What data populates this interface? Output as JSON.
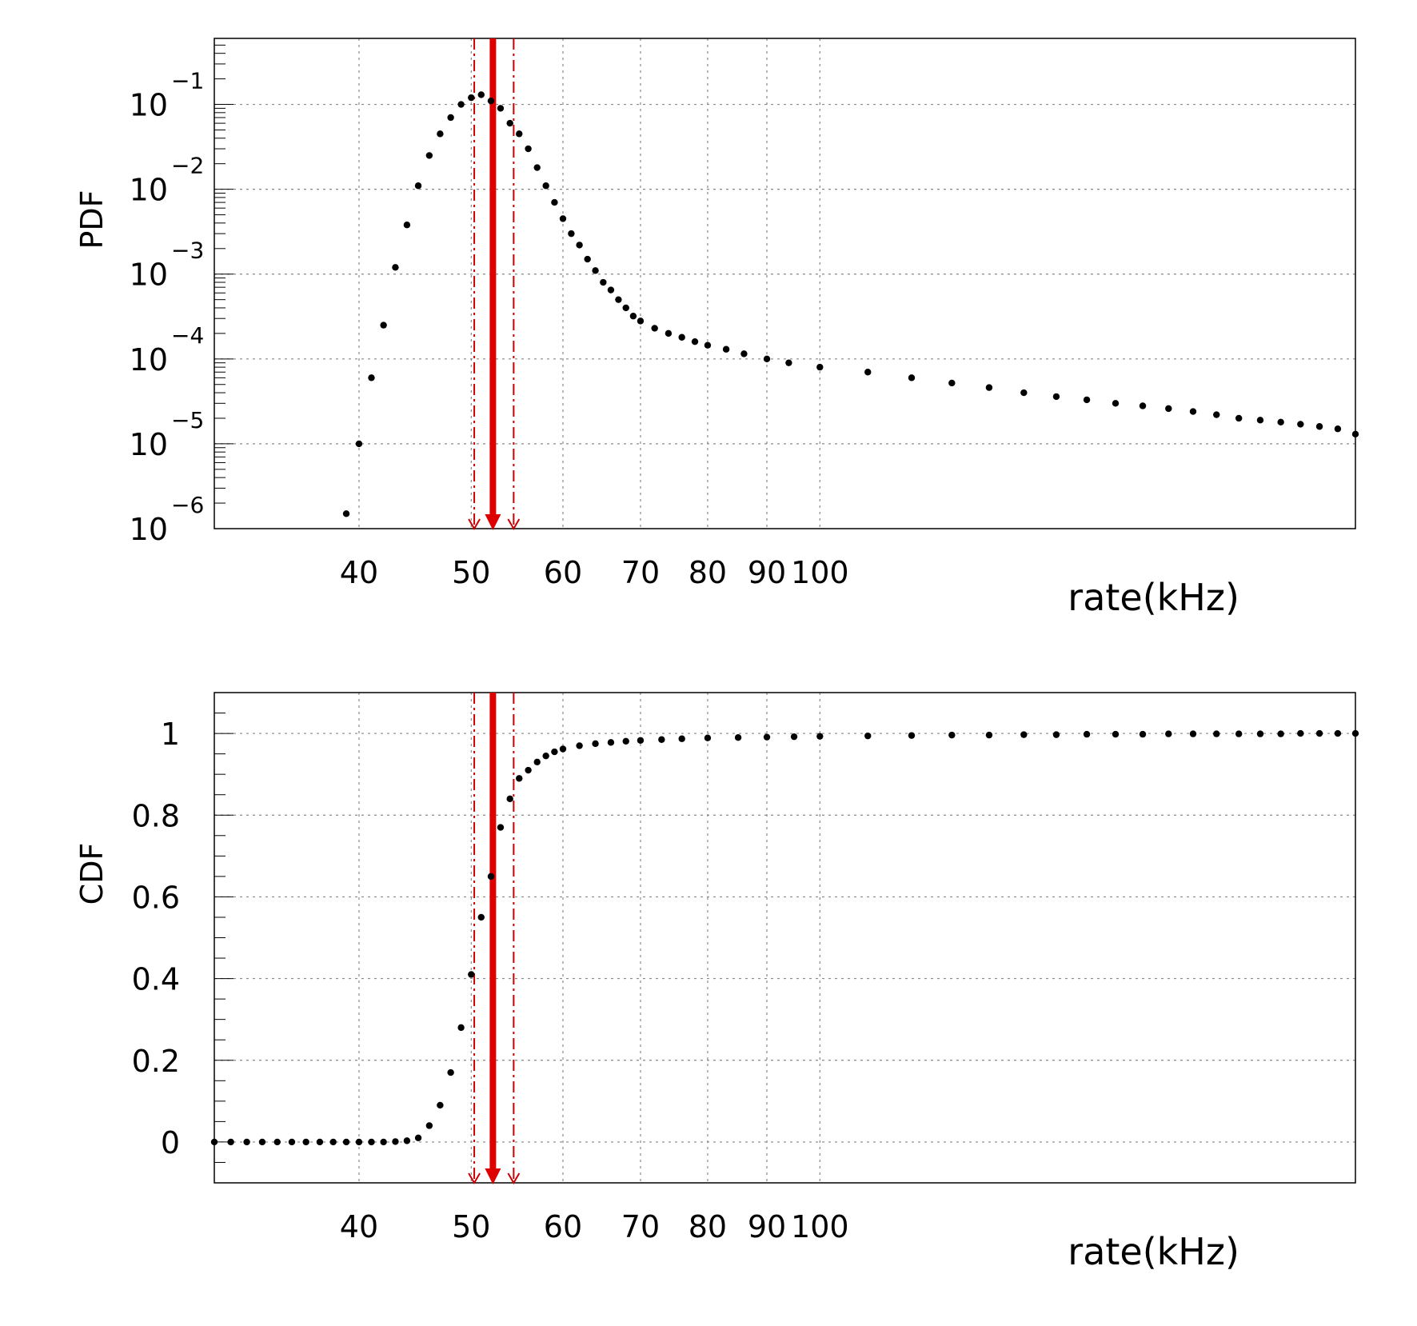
{
  "chart_data": [
    {
      "type": "scatter",
      "ylabel": "PDF",
      "xlabel": "rate(kHz)",
      "xscale": "log",
      "yscale": "log",
      "xlim": [
        30,
        290
      ],
      "ylim": [
        1e-06,
        0.6
      ],
      "grid": true,
      "x_ticks": [
        40,
        50,
        60,
        70,
        80,
        90,
        100
      ],
      "y_ticks": [
        {
          "value": 1e-06,
          "base": "10",
          "exp": "−6"
        },
        {
          "value": 1e-05,
          "base": "10",
          "exp": "−5"
        },
        {
          "value": 0.0001,
          "base": "10",
          "exp": "−4"
        },
        {
          "value": 0.001,
          "base": "10",
          "exp": "−3"
        },
        {
          "value": 0.01,
          "base": "10",
          "exp": "−2"
        },
        {
          "value": 0.1,
          "base": "10",
          "exp": "−1"
        }
      ],
      "markers": {
        "central": 52.2,
        "band_low": 50.3,
        "band_high": 54.4
      },
      "series": [
        {
          "x": [
            39,
            40,
            41,
            42,
            43,
            44,
            45,
            46,
            47,
            48,
            49,
            50,
            51,
            52,
            53,
            54,
            55,
            56,
            57,
            58,
            59,
            60,
            61,
            62,
            63,
            64,
            65,
            66,
            67,
            68,
            69,
            70,
            72,
            74,
            76,
            78,
            80,
            83,
            86,
            90,
            94,
            100,
            110,
            120,
            130,
            140,
            150,
            160,
            170,
            180,
            190,
            200,
            210,
            220,
            230,
            240,
            250,
            260,
            270,
            280,
            290
          ],
          "y": [
            1.5e-06,
            1e-05,
            6e-05,
            0.00025,
            0.0012,
            0.0038,
            0.011,
            0.025,
            0.045,
            0.07,
            0.1,
            0.12,
            0.13,
            0.11,
            0.09,
            0.06,
            0.045,
            0.03,
            0.018,
            0.011,
            0.007,
            0.0045,
            0.003,
            0.0022,
            0.0015,
            0.0011,
            0.0008,
            0.00065,
            0.0005,
            0.0004,
            0.00032,
            0.00028,
            0.00023,
            0.0002,
            0.00018,
            0.00016,
            0.000145,
            0.00013,
            0.000115,
            0.0001,
            9e-05,
            8e-05,
            7e-05,
            6e-05,
            5.2e-05,
            4.6e-05,
            4e-05,
            3.6e-05,
            3.3e-05,
            3e-05,
            2.8e-05,
            2.6e-05,
            2.4e-05,
            2.2e-05,
            2e-05,
            1.9e-05,
            1.8e-05,
            1.7e-05,
            1.6e-05,
            1.5e-05,
            1.3e-05
          ]
        }
      ]
    },
    {
      "type": "scatter",
      "ylabel": "CDF",
      "xlabel": "rate(kHz)",
      "xscale": "log",
      "yscale": "linear",
      "xlim": [
        30,
        290
      ],
      "ylim": [
        -0.1,
        1.1
      ],
      "grid": true,
      "x_ticks": [
        40,
        50,
        60,
        70,
        80,
        90,
        100
      ],
      "y_ticks": [
        {
          "value": 0,
          "label": "0"
        },
        {
          "value": 0.2,
          "label": "0.2"
        },
        {
          "value": 0.4,
          "label": "0.4"
        },
        {
          "value": 0.6,
          "label": "0.6"
        },
        {
          "value": 0.8,
          "label": "0.8"
        },
        {
          "value": 1,
          "label": "1"
        }
      ],
      "markers": {
        "central": 52.2,
        "band_low": 50.3,
        "band_high": 54.4
      },
      "series": [
        {
          "x": [
            30,
            31,
            32,
            33,
            34,
            35,
            36,
            37,
            38,
            39,
            40,
            41,
            42,
            43,
            44,
            45,
            46,
            47,
            48,
            49,
            50,
            51,
            52,
            53,
            54,
            55,
            56,
            57,
            58,
            59,
            60,
            62,
            64,
            66,
            68,
            70,
            73,
            76,
            80,
            85,
            90,
            95,
            100,
            110,
            120,
            130,
            140,
            150,
            160,
            170,
            180,
            190,
            200,
            210,
            220,
            230,
            240,
            250,
            260,
            270,
            280,
            290
          ],
          "y": [
            0,
            0,
            0,
            0,
            0,
            0,
            0,
            0,
            0,
            0,
            0,
            0,
            0,
            0.001,
            0.003,
            0.01,
            0.04,
            0.09,
            0.17,
            0.28,
            0.41,
            0.55,
            0.65,
            0.77,
            0.84,
            0.89,
            0.91,
            0.93,
            0.945,
            0.955,
            0.962,
            0.97,
            0.975,
            0.978,
            0.981,
            0.983,
            0.985,
            0.987,
            0.989,
            0.99,
            0.991,
            0.992,
            0.993,
            0.994,
            0.995,
            0.996,
            0.996,
            0.997,
            0.997,
            0.998,
            0.998,
            0.998,
            0.999,
            0.999,
            0.999,
            0.999,
            0.999,
            0.999,
            1.0,
            1.0,
            1.0,
            1.0
          ]
        }
      ]
    }
  ],
  "colors": {
    "marker_red": "#dd0000",
    "band_red": "#cc0000",
    "points": "#000000"
  }
}
